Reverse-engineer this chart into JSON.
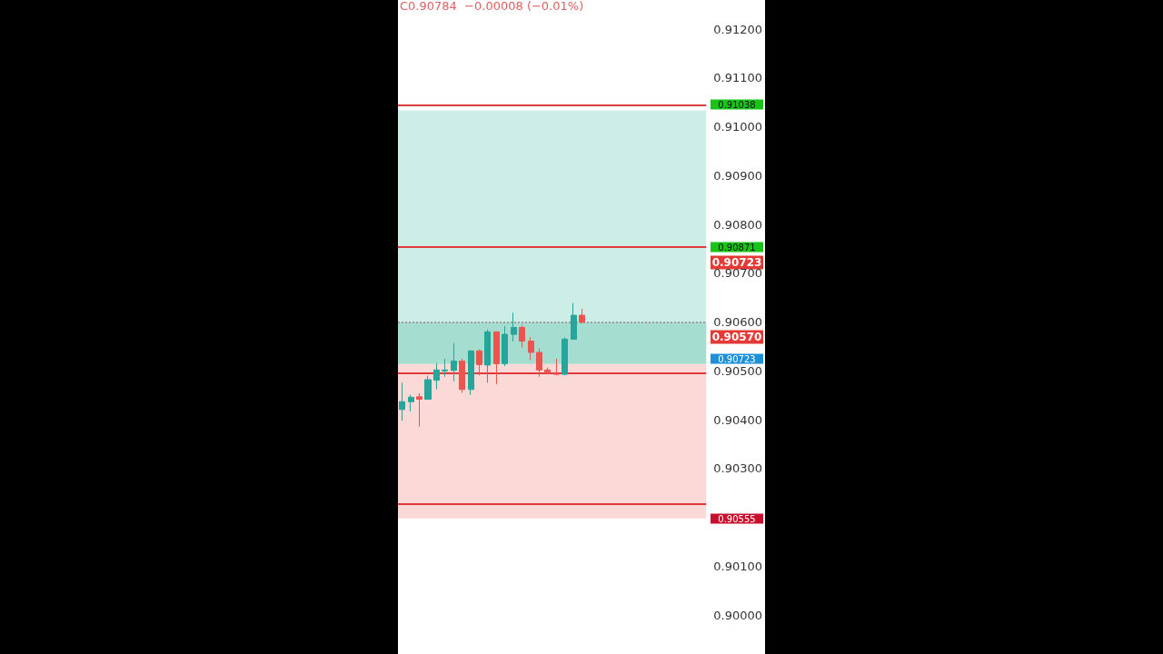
{
  "chart_data": {
    "type": "candlestick",
    "categories": [
      null,
      null,
      null,
      null,
      null,
      null,
      null,
      null,
      null,
      null,
      null,
      null,
      null,
      null,
      null,
      null,
      null,
      null,
      null,
      null,
      null,
      null,
      null,
      null,
      null,
      null,
      null,
      null,
      null,
      null,
      null,
      null,
      null,
      null,
      null,
      null
    ],
    "ohlc": [
      [
        0.90421,
        0.90476,
        0.90398,
        0.90437
      ],
      [
        0.90437,
        0.90451,
        0.90417,
        0.90446
      ],
      [
        0.90447,
        0.90454,
        0.90386,
        0.90442
      ],
      [
        0.90442,
        0.9049,
        0.90442,
        0.90482
      ],
      [
        0.90481,
        0.90516,
        0.90462,
        0.90502
      ],
      [
        0.905,
        0.90525,
        0.90488,
        0.90502
      ],
      [
        0.90501,
        0.90557,
        0.90479,
        0.9052
      ],
      [
        0.9052,
        0.90525,
        0.90455,
        0.90462
      ],
      [
        0.90462,
        0.90541,
        0.90451,
        0.90541
      ],
      [
        0.90541,
        0.90544,
        0.90491,
        0.90513
      ],
      [
        0.90512,
        0.90585,
        0.90476,
        0.9058
      ],
      [
        0.9058,
        0.90581,
        0.90473,
        0.90515
      ],
      [
        0.90515,
        0.90592,
        0.9051,
        0.90575
      ],
      [
        0.90575,
        0.90619,
        0.9056,
        0.90589
      ],
      [
        0.90589,
        0.90594,
        0.90548,
        0.90561
      ],
      [
        0.90561,
        0.90569,
        0.90522,
        0.90538
      ],
      [
        0.90538,
        0.90546,
        0.90488,
        0.90502
      ],
      [
        0.90502,
        0.90507,
        0.90493,
        0.90496
      ],
      [
        0.90494,
        0.90525,
        0.90491,
        0.90493
      ],
      [
        0.90493,
        0.90569,
        0.90491,
        0.90565
      ],
      [
        0.90565,
        0.90639,
        0.90565,
        0.90614
      ],
      [
        0.90614,
        0.90627,
        0.90597,
        0.906
      ],
      null,
      null,
      null,
      null,
      null,
      null,
      null,
      null,
      null,
      null,
      null,
      null,
      null,
      null
    ],
    "ylim": [
      0.8992,
      0.9126
    ],
    "yticks": [
      {
        "value": 0.9,
        "label": "0.90000"
      },
      {
        "value": 0.901,
        "label": "0.90100"
      },
      {
        "value": 0.903,
        "label": "0.90300"
      },
      {
        "value": 0.904,
        "label": "0.90400"
      },
      {
        "value": 0.905,
        "label": "0.90500"
      },
      {
        "value": 0.906,
        "label": "0.90600"
      },
      {
        "value": 0.907,
        "label": "0.90700"
      },
      {
        "value": 0.908,
        "label": "0.90800"
      },
      {
        "value": 0.909,
        "label": "0.90900"
      },
      {
        "value": 0.91,
        "label": "0.91000"
      },
      {
        "value": 0.911,
        "label": "0.91100"
      },
      {
        "value": 0.912,
        "label": "0.91200"
      }
    ],
    "tick_labels": "y",
    "grid": false,
    "bands": [
      {
        "axis": "y",
        "from": 0.90514,
        "to": 0.91034,
        "color": "#cdeee6"
      },
      {
        "axis": "y",
        "from": 0.90514,
        "to": 0.906,
        "color": "#a6ddd1"
      },
      {
        "axis": "y",
        "from": 0.90198,
        "to": 0.90514,
        "color": "#fad9d7"
      }
    ],
    "ref_lines": [
      {
        "axis": "y",
        "value": 0.91045,
        "color": "#e0393e"
      },
      {
        "axis": "y",
        "value": 0.90755,
        "color": "#e0393e"
      },
      {
        "axis": "y",
        "value": 0.90496,
        "color": "#e0393e"
      },
      {
        "axis": "y",
        "value": 0.90227,
        "color": "#e0393e"
      },
      {
        "axis": "y",
        "value": 0.906,
        "color": "#9e9e9e",
        "line_style": "dotted"
      }
    ],
    "annotations": [
      "C0.90784  −0.00008 (−0.01%)",
      "0.91038",
      "0.90871",
      "0.90723",
      "0.90570",
      "0.90723",
      "0.90555"
    ]
  }
}
